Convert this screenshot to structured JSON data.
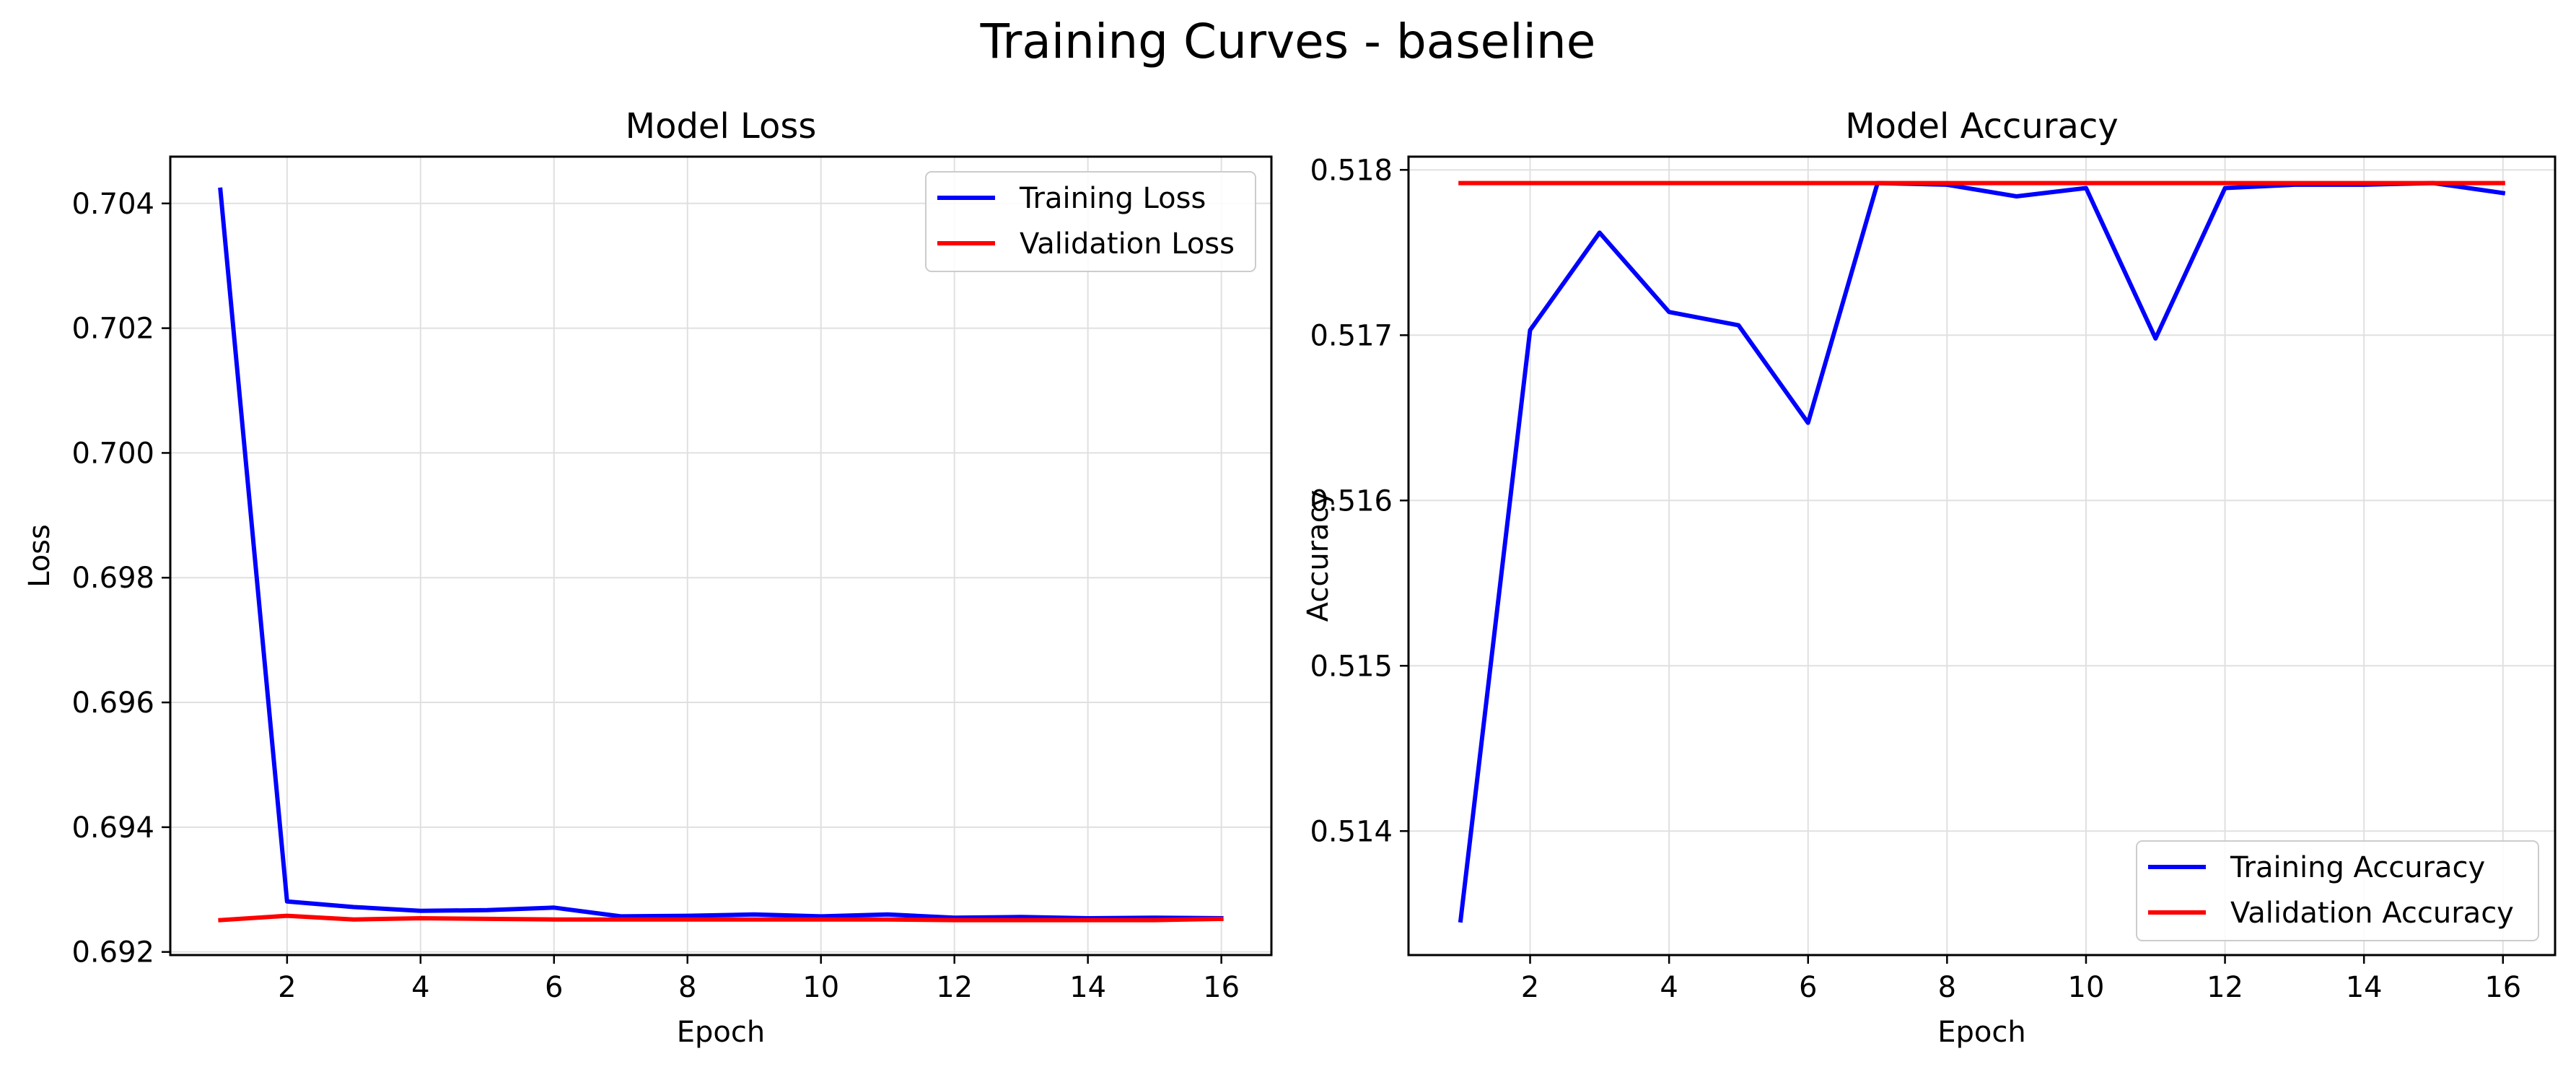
{
  "figure": {
    "title": "Training Curves - baseline"
  },
  "chart_data": [
    {
      "type": "line",
      "title": "Model Loss",
      "xlabel": "Epoch",
      "ylabel": "Loss",
      "x": [
        1,
        2,
        3,
        4,
        5,
        6,
        7,
        8,
        9,
        10,
        11,
        12,
        13,
        14,
        15,
        16
      ],
      "xlim": [
        0.25,
        16.75
      ],
      "ylim": [
        0.69195,
        0.70475
      ],
      "xticks": [
        2,
        4,
        6,
        8,
        10,
        12,
        14,
        16
      ],
      "yticks": [
        0.692,
        0.694,
        0.696,
        0.698,
        0.7,
        0.702,
        0.704
      ],
      "ytick_labels": [
        "0.692",
        "0.694",
        "0.696",
        "0.698",
        "0.700",
        "0.702",
        "0.704"
      ],
      "grid": true,
      "legend": "top-right",
      "series": [
        {
          "name": "Training Loss",
          "color": "#0000ff",
          "values": [
            0.70422,
            0.69281,
            0.69272,
            0.69266,
            0.69267,
            0.69271,
            0.69257,
            0.69258,
            0.6926,
            0.69257,
            0.6926,
            0.69255,
            0.69256,
            0.69254,
            0.69255,
            0.69254
          ]
        },
        {
          "name": "Validation Loss",
          "color": "#ff0000",
          "values": [
            0.69251,
            0.69258,
            0.69252,
            0.69254,
            0.69253,
            0.69252,
            0.69252,
            0.69252,
            0.69252,
            0.69252,
            0.69252,
            0.69251,
            0.69251,
            0.69251,
            0.69251,
            0.69253
          ]
        }
      ]
    },
    {
      "type": "line",
      "title": "Model Accuracy",
      "xlabel": "Epoch",
      "ylabel": "Accuracy",
      "x": [
        1,
        2,
        3,
        4,
        5,
        6,
        7,
        8,
        9,
        10,
        11,
        12,
        13,
        14,
        15,
        16
      ],
      "xlim": [
        0.25,
        16.75
      ],
      "ylim": [
        0.51325,
        0.51808
      ],
      "xticks": [
        2,
        4,
        6,
        8,
        10,
        12,
        14,
        16
      ],
      "yticks": [
        0.514,
        0.515,
        0.516,
        0.517,
        0.518
      ],
      "ytick_labels": [
        "0.514",
        "0.515",
        "0.516",
        "0.517",
        "0.518"
      ],
      "grid": true,
      "legend": "bottom-right",
      "series": [
        {
          "name": "Training Accuracy",
          "color": "#0000ff",
          "values": [
            0.51346,
            0.51703,
            0.51762,
            0.51714,
            0.51706,
            0.51647,
            0.51792,
            0.51791,
            0.51784,
            0.51789,
            0.51698,
            0.51789,
            0.51791,
            0.51791,
            0.51792,
            0.51786
          ]
        },
        {
          "name": "Validation Accuracy",
          "color": "#ff0000",
          "values": [
            0.51792,
            0.51792,
            0.51792,
            0.51792,
            0.51792,
            0.51792,
            0.51792,
            0.51792,
            0.51792,
            0.51792,
            0.51792,
            0.51792,
            0.51792,
            0.51792,
            0.51792,
            0.51792
          ]
        }
      ]
    }
  ]
}
